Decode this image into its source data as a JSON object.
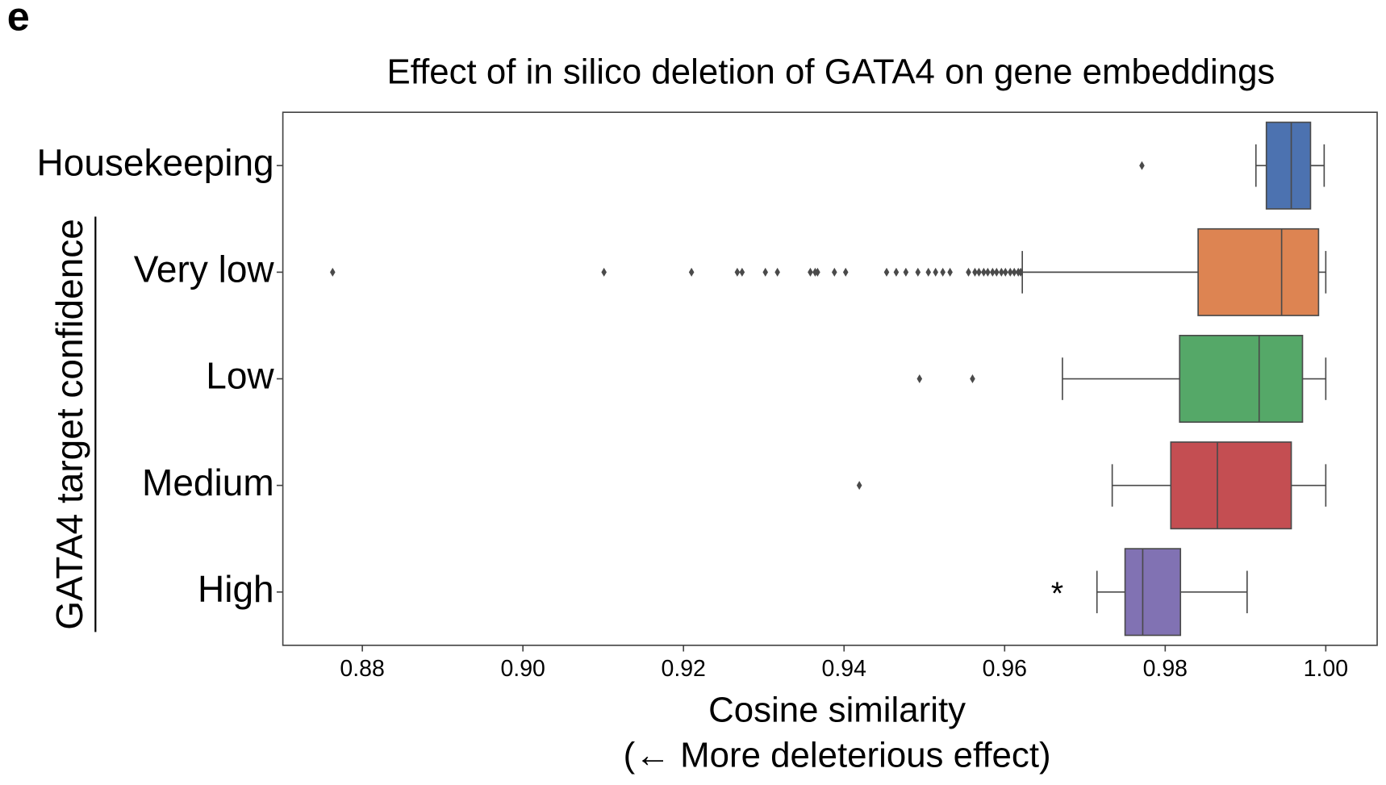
{
  "panel_label": "e",
  "chart_data": {
    "type": "boxplot",
    "orientation": "horizontal",
    "title": "Effect of in silico deletion of GATA4 on gene embeddings",
    "x_label": "Cosine similarity",
    "x_sublabel": "(← More deleterious effect)",
    "group_label": "GATA4 target confidence",
    "annotation": "*",
    "categories": [
      "Housekeeping",
      "Very low",
      "Low",
      "Medium",
      "High"
    ],
    "series": [
      {
        "color": "#4c72b0",
        "whislo": 0.9913,
        "q1": 0.9926,
        "median": 0.9957,
        "q3": 0.9981,
        "whishi": 0.9998,
        "fliers": [
          0.9771
        ]
      },
      {
        "color": "#dd8452",
        "whislo": 0.9622,
        "q1": 0.9841,
        "median": 0.9945,
        "q3": 0.9991,
        "whishi": 1.0,
        "fliers": [
          0.8763,
          0.9101,
          0.921,
          0.9267,
          0.9273,
          0.9302,
          0.9317,
          0.9358,
          0.9364,
          0.9367,
          0.9388,
          0.9402,
          0.9453,
          0.9465,
          0.9477,
          0.9492,
          0.9505,
          0.9514,
          0.9523,
          0.9532,
          0.9555,
          0.9563,
          0.9568,
          0.9574,
          0.9579,
          0.9585,
          0.959,
          0.9596,
          0.9601,
          0.9607,
          0.9612,
          0.9617,
          0.962
        ]
      },
      {
        "color": "#55a868",
        "whislo": 0.9672,
        "q1": 0.9818,
        "median": 0.9917,
        "q3": 0.9971,
        "whishi": 1.0,
        "fliers": [
          0.9494,
          0.956
        ]
      },
      {
        "color": "#c44e52",
        "whislo": 0.9734,
        "q1": 0.9807,
        "median": 0.9865,
        "q3": 0.9957,
        "whishi": 1.0,
        "fliers": [
          0.9419
        ]
      },
      {
        "color": "#8172b3",
        "whislo": 0.9715,
        "q1": 0.975,
        "median": 0.9772,
        "q3": 0.9819,
        "whishi": 0.9902,
        "fliers": []
      }
    ],
    "xlim": [
      0.8701,
      1.0064
    ],
    "xticks": [
      0.88,
      {
        "value": 0.9,
        "label": "0.90"
      },
      0.92,
      0.94,
      0.96,
      0.98,
      {
        "value": 1.0,
        "label": "1.00"
      }
    ]
  }
}
